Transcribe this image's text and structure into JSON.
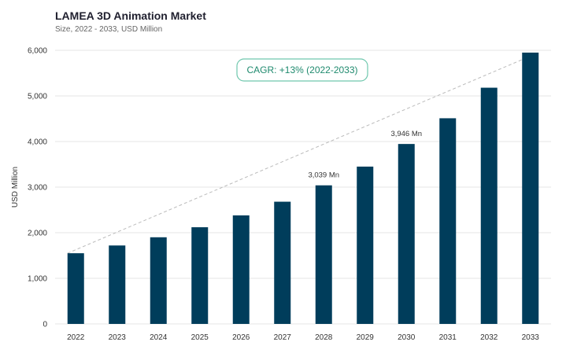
{
  "chart_data": {
    "type": "bar",
    "title": "LAMEA 3D Animation Market",
    "subtitle": "Size, 2022 - 2033, USD Million",
    "ylabel": "USD Million",
    "xlabel": "",
    "categories": [
      "2022",
      "2023",
      "2024",
      "2025",
      "2026",
      "2027",
      "2028",
      "2029",
      "2030",
      "2031",
      "2032",
      "2033"
    ],
    "values": [
      1550,
      1720,
      1900,
      2120,
      2380,
      2680,
      3039,
      3450,
      3946,
      4510,
      5180,
      5950
    ],
    "ylim": [
      0,
      6000
    ],
    "yticks": [
      0,
      1000,
      2000,
      3000,
      4000,
      5000,
      6000
    ],
    "ytick_labels": [
      "0",
      "1,000",
      "2,000",
      "3,000",
      "4,000",
      "5,000",
      "6,000"
    ],
    "data_labels": [
      {
        "category": "2028",
        "text": "3,039 Mn"
      },
      {
        "category": "2030",
        "text": "3,946 Mn"
      }
    ],
    "annotation": "CAGR: +13% (2022-2033)",
    "trend_line": {
      "from": "2022",
      "to": "2033",
      "style": "dashed"
    },
    "grid": true,
    "colors": {
      "bar": "#003d5b",
      "grid": "#e6e6e6",
      "annotation": "#1f8a6e",
      "trend": "#bbbbbb"
    }
  }
}
